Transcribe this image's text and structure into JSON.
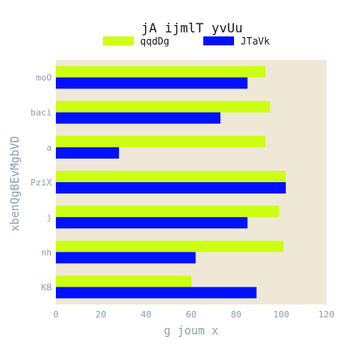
{
  "chart_data": {
    "type": "bar",
    "orientation": "horizontal",
    "title": "jA ijmlT  yvUu",
    "xlabel": "g joum x",
    "ylabel": "xbenQgBEvMgbVD",
    "categories": [
      "moO",
      "baci",
      "a",
      "PziX",
      "j",
      "nh",
      "KB"
    ],
    "series": [
      {
        "name": "qqdDg",
        "color": "#ccff11",
        "values": [
          93,
          95,
          93,
          102,
          99,
          101,
          60
        ]
      },
      {
        "name": "JTaVk",
        "color": "#0011ff",
        "values": [
          85,
          73,
          28,
          102,
          85,
          62,
          89
        ]
      }
    ],
    "xlim": [
      0,
      120
    ],
    "xticks": [
      0,
      20,
      40,
      60,
      80,
      100,
      120
    ],
    "grid": false,
    "legend_position": "top-center",
    "plot_background": "#efe8d6"
  }
}
